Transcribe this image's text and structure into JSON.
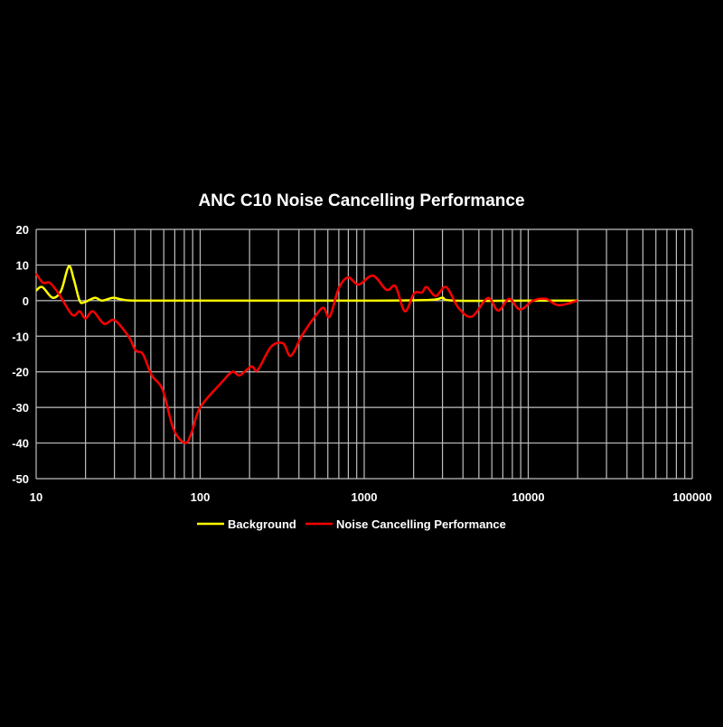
{
  "chart_data": {
    "type": "line",
    "title": "ANC C10  Noise Cancelling Performance",
    "xlabel": "",
    "ylabel": "",
    "xscale": "log",
    "xlim": [
      10,
      100000
    ],
    "ylim": [
      -50,
      20
    ],
    "x_ticks": [
      "10",
      "100",
      "1000",
      "10000",
      "100000"
    ],
    "y_ticks": [
      "20",
      "10",
      "0",
      "-10",
      "-20",
      "-30",
      "-40",
      "-50"
    ],
    "grid": true,
    "legend_position": "bottom",
    "colors": {
      "background": "#000000",
      "grid": "#bfbfbf",
      "Background": "#ffff00",
      "Noise Cancelling Performance": "#ff0000"
    },
    "series": [
      {
        "name": "Background",
        "points": [
          [
            10,
            2.8
          ],
          [
            10.9,
            3.8
          ],
          [
            12.6,
            0.8
          ],
          [
            14.2,
            2.8
          ],
          [
            15.8,
            9.6
          ],
          [
            17,
            5.8
          ],
          [
            18.4,
            0
          ],
          [
            19.6,
            -0.5
          ],
          [
            22.8,
            0.8
          ],
          [
            25.2,
            0
          ],
          [
            29.4,
            0.8
          ],
          [
            33.4,
            0.3
          ],
          [
            40,
            0
          ],
          [
            100,
            0
          ],
          [
            300,
            0
          ],
          [
            1000,
            0
          ],
          [
            2500,
            0.2
          ],
          [
            3000,
            0.8
          ],
          [
            3500,
            0
          ],
          [
            10000,
            0
          ],
          [
            20000,
            0
          ]
        ]
      },
      {
        "name": "Noise Cancelling Performance",
        "points": [
          [
            10,
            7.6
          ],
          [
            11,
            5
          ],
          [
            12.1,
            5
          ],
          [
            13.7,
            2
          ],
          [
            16.6,
            -4
          ],
          [
            18.4,
            -3
          ],
          [
            20,
            -5
          ],
          [
            22.2,
            -3
          ],
          [
            25.9,
            -6.5
          ],
          [
            30,
            -5.5
          ],
          [
            36.5,
            -10
          ],
          [
            40.4,
            -14
          ],
          [
            44.7,
            -15
          ],
          [
            50.7,
            -21
          ],
          [
            59,
            -25
          ],
          [
            68.7,
            -36
          ],
          [
            81,
            -40
          ],
          [
            88.7,
            -37
          ],
          [
            100,
            -30
          ],
          [
            135,
            -23
          ],
          [
            157,
            -20
          ],
          [
            174,
            -21
          ],
          [
            205,
            -18.5
          ],
          [
            224,
            -19.5
          ],
          [
            270,
            -13
          ],
          [
            320,
            -12
          ],
          [
            357,
            -15.5
          ],
          [
            421,
            -9.5
          ],
          [
            510,
            -4
          ],
          [
            565,
            -2
          ],
          [
            616,
            -4.5
          ],
          [
            700,
            3.5
          ],
          [
            797,
            6.5
          ],
          [
            925,
            4.5
          ],
          [
            1130,
            7
          ],
          [
            1370,
            3
          ],
          [
            1550,
            4
          ],
          [
            1770,
            -3
          ],
          [
            2010,
            2
          ],
          [
            2250,
            2.3
          ],
          [
            2400,
            3.8
          ],
          [
            2730,
            1.3
          ],
          [
            3160,
            3.8
          ],
          [
            3750,
            -2
          ],
          [
            4530,
            -4.5
          ],
          [
            5660,
            0.7
          ],
          [
            6560,
            -2.8
          ],
          [
            7650,
            0.5
          ],
          [
            8900,
            -2.5
          ],
          [
            10700,
            0
          ],
          [
            12800,
            0.5
          ],
          [
            15300,
            -1.3
          ],
          [
            20000,
            0
          ]
        ]
      }
    ]
  }
}
